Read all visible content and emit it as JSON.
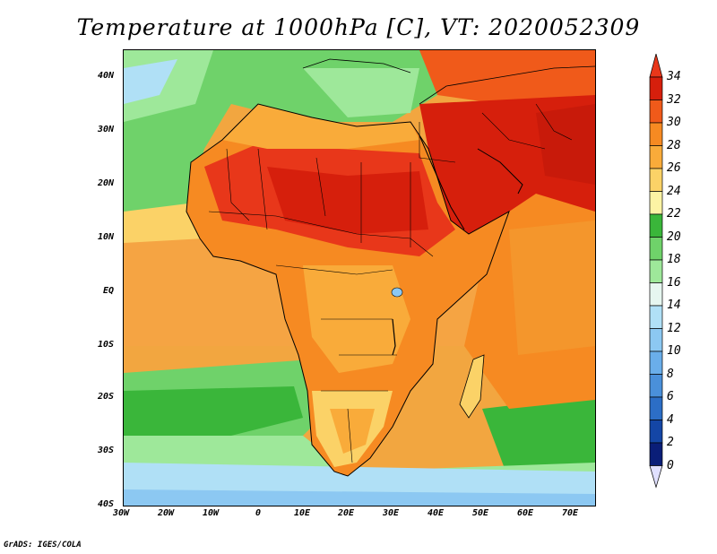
{
  "title": "Temperature at 1000hPa [C], VT: 2020052309",
  "credit": "GrADS: IGES/COLA",
  "lat_ticks": [
    "40N",
    "30N",
    "20N",
    "10N",
    "EQ",
    "10S",
    "20S",
    "30S",
    "40S"
  ],
  "lon_ticks": [
    "30W",
    "20W",
    "10W",
    "0",
    "10E",
    "20E",
    "30E",
    "40E",
    "50E",
    "60E",
    "70E"
  ],
  "colorbar": {
    "labels": [
      "34",
      "32",
      "30",
      "28",
      "26",
      "24",
      "22",
      "20",
      "18",
      "16",
      "14",
      "12",
      "10",
      "8",
      "6",
      "4",
      "2",
      "0"
    ],
    "colors": [
      "#e8371a",
      "#d61f0c",
      "#f05a1a",
      "#f68a22",
      "#f9ab3a",
      "#fbd267",
      "#fcf3a4",
      "#3ab63a",
      "#6fd26a",
      "#9ee89a",
      "#e6f6f0",
      "#b0e0f6",
      "#8cc8f2",
      "#6aaeea",
      "#4a90da",
      "#2c6ec6",
      "#1446a6",
      "#0a1e78",
      "#e0e0ff"
    ]
  }
}
